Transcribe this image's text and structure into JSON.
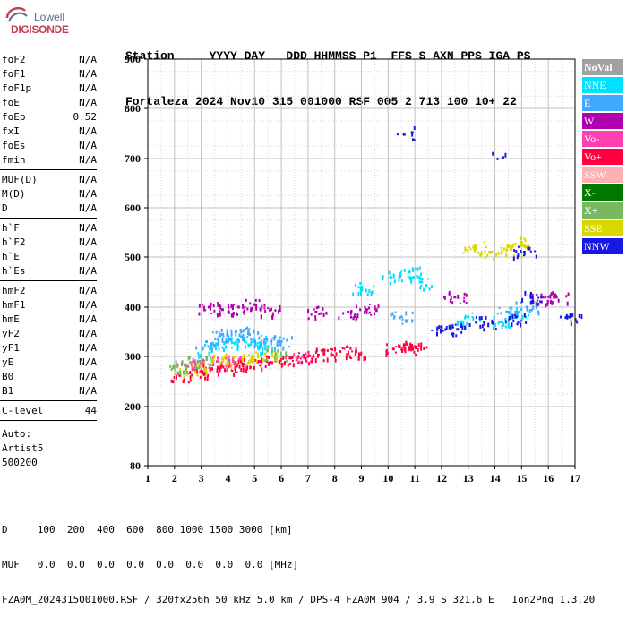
{
  "logo": {
    "lowell": "Lowell",
    "digisonde": "DIGISONDE"
  },
  "header": {
    "line1": "Station     YYYY DAY   DDD HHMMSS P1  FFS S AXN PPS IGA PS",
    "line2": "Fortaleza 2024 Nov10 315 001000 RSF 005 2 713 100 10+ 22"
  },
  "params": {
    "group1": [
      {
        "name": "foF2",
        "value": "N/A"
      },
      {
        "name": "foF1",
        "value": "N/A"
      },
      {
        "name": "foF1p",
        "value": "N/A"
      },
      {
        "name": "foE",
        "value": "N/A"
      },
      {
        "name": "foEp",
        "value": "0.52"
      },
      {
        "name": "fxI",
        "value": "N/A"
      },
      {
        "name": "foEs",
        "value": "N/A"
      },
      {
        "name": "fmin",
        "value": "N/A"
      }
    ],
    "group2": [
      {
        "name": "MUF(D)",
        "value": "N/A"
      },
      {
        "name": "M(D)",
        "value": "N/A"
      },
      {
        "name": "D",
        "value": "N/A"
      }
    ],
    "group3": [
      {
        "name": "h`F",
        "value": "N/A"
      },
      {
        "name": "h`F2",
        "value": "N/A"
      },
      {
        "name": "h`E",
        "value": "N/A"
      },
      {
        "name": "h`Es",
        "value": "N/A"
      }
    ],
    "group4": [
      {
        "name": "hmF2",
        "value": "N/A"
      },
      {
        "name": "hmF1",
        "value": "N/A"
      },
      {
        "name": "hmE",
        "value": "N/A"
      },
      {
        "name": "yF2",
        "value": "N/A"
      },
      {
        "name": "yF1",
        "value": "N/A"
      },
      {
        "name": "yE",
        "value": "N/A"
      },
      {
        "name": "B0",
        "value": "N/A"
      },
      {
        "name": "B1",
        "value": "N/A"
      }
    ],
    "clevel": {
      "name": "C-level",
      "value": "44"
    },
    "auto": [
      "Auto:",
      "Artist5",
      "500200"
    ]
  },
  "legend": [
    {
      "label": "NoVal",
      "color": "#a0a0a0"
    },
    {
      "label": "NNE",
      "color": "#00e0ff"
    },
    {
      "label": "E",
      "color": "#40a8ff"
    },
    {
      "label": "W",
      "color": "#b000b0"
    },
    {
      "label": "Vo-",
      "color": "#ff40b0"
    },
    {
      "label": "Vo+",
      "color": "#ff0040"
    },
    {
      "label": "SSW",
      "color": "#ffb0b0"
    },
    {
      "label": "X-",
      "color": "#007800"
    },
    {
      "label": "X+",
      "color": "#78b860"
    },
    {
      "label": "SSE",
      "color": "#d8d800"
    },
    {
      "label": "NNW",
      "color": "#1818e0"
    }
  ],
  "footer": {
    "line1": "D     100  200  400  600  800 1000 1500 3000 [km]",
    "line2": "MUF   0.0  0.0  0.0  0.0  0.0  0.0  0.0  0.0 [MHz]",
    "line3": "FZA0M_2024315001000.RSF / 320fx256h 50 kHz 5.0 km / DPS-4 FZA0M 904 / 3.9 S 321.6 E   Ion2Png 1.3.20"
  },
  "chart_data": {
    "type": "scatter",
    "title": "",
    "xlabel": "",
    "ylabel": "",
    "xlim": [
      1,
      17
    ],
    "ylim": [
      80,
      900
    ],
    "x_ticks": [
      1,
      2,
      3,
      4,
      5,
      6,
      7,
      8,
      9,
      10,
      11,
      12,
      13,
      14,
      15,
      16,
      17
    ],
    "y_ticks": [
      80,
      200,
      300,
      400,
      500,
      600,
      700,
      800,
      900
    ],
    "grid": true,
    "legend_position": "right",
    "series": [
      {
        "name": "NNE",
        "points": [
          [
            3.0,
            300
          ],
          [
            3.5,
            320
          ],
          [
            4.0,
            330
          ],
          [
            4.5,
            340
          ],
          [
            5.0,
            330
          ],
          [
            5.5,
            320
          ],
          [
            9.0,
            440
          ],
          [
            10.1,
            460
          ],
          [
            10.8,
            470
          ],
          [
            11.2,
            450
          ],
          [
            13.0,
            380
          ],
          [
            14.2,
            370
          ],
          [
            14.9,
            390
          ]
        ]
      },
      {
        "name": "E",
        "points": [
          [
            3.2,
            330
          ],
          [
            3.8,
            345
          ],
          [
            4.3,
            350
          ],
          [
            4.8,
            345
          ],
          [
            5.4,
            335
          ],
          [
            6.0,
            330
          ],
          [
            10.5,
            380
          ],
          [
            14.5,
            390
          ],
          [
            15.2,
            400
          ]
        ]
      },
      {
        "name": "W",
        "points": [
          [
            3.3,
            400
          ],
          [
            3.8,
            395
          ],
          [
            4.4,
            400
          ],
          [
            5.0,
            405
          ],
          [
            5.6,
            395
          ],
          [
            7.3,
            390
          ],
          [
            8.5,
            390
          ],
          [
            9.2,
            395
          ],
          [
            12.5,
            420
          ],
          [
            15.8,
            420
          ],
          [
            16.3,
            420
          ]
        ]
      },
      {
        "name": "Vo-",
        "points": [
          [
            2.5,
            280
          ],
          [
            3.0,
            285
          ],
          [
            3.6,
            290
          ],
          [
            4.2,
            290
          ],
          [
            6.8,
            300
          ]
        ]
      },
      {
        "name": "Vo+",
        "points": [
          [
            2.2,
            262
          ],
          [
            2.8,
            270
          ],
          [
            3.4,
            275
          ],
          [
            4.0,
            280
          ],
          [
            4.6,
            285
          ],
          [
            5.2,
            290
          ],
          [
            5.8,
            295
          ],
          [
            6.4,
            298
          ],
          [
            7.0,
            300
          ],
          [
            7.6,
            305
          ],
          [
            8.2,
            310
          ],
          [
            8.8,
            310
          ],
          [
            10.2,
            315
          ],
          [
            10.8,
            318
          ],
          [
            11.0,
            320
          ]
        ]
      },
      {
        "name": "SSE",
        "points": [
          [
            2.4,
            270
          ],
          [
            3.0,
            280
          ],
          [
            3.8,
            295
          ],
          [
            4.6,
            300
          ],
          [
            5.4,
            305
          ],
          [
            13.2,
            520
          ],
          [
            13.8,
            510
          ],
          [
            14.6,
            515
          ],
          [
            15.0,
            530
          ]
        ]
      },
      {
        "name": "X+",
        "points": [
          [
            2.1,
            280
          ],
          [
            2.9,
            290
          ],
          [
            5.8,
            305
          ]
        ]
      },
      {
        "name": "NNW",
        "points": [
          [
            10.6,
            748
          ],
          [
            10.9,
            752
          ],
          [
            12.0,
            360
          ],
          [
            12.6,
            355
          ],
          [
            13.6,
            370
          ],
          [
            14.3,
            702
          ],
          [
            14.8,
            380
          ],
          [
            15.1,
            510
          ],
          [
            15.4,
            420
          ],
          [
            16.8,
            380
          ]
        ]
      }
    ]
  }
}
